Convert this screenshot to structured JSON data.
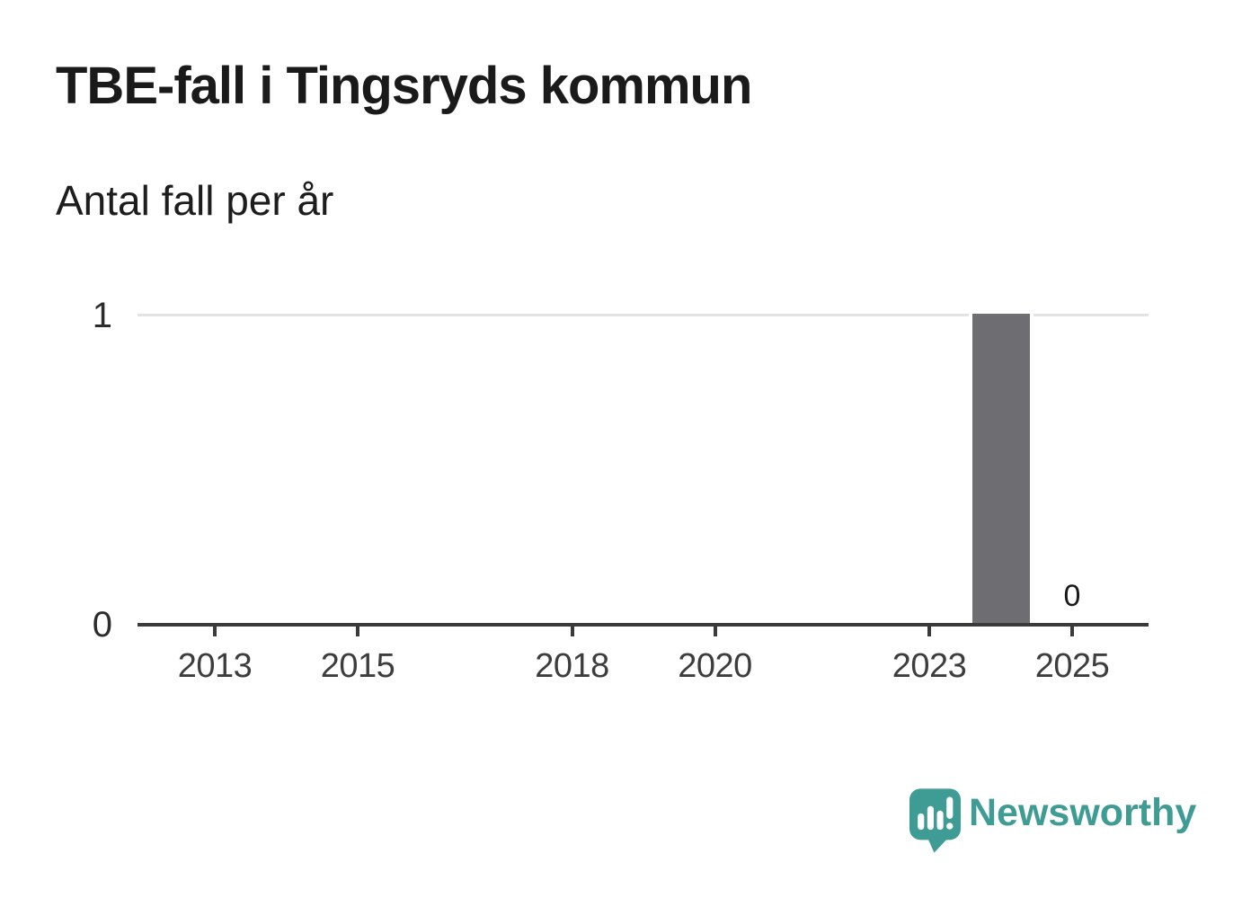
{
  "header": {
    "title": "TBE-fall i Tingsryds kommun",
    "subtitle": "Antal fall per år"
  },
  "chart_data": {
    "type": "bar",
    "title": "TBE-fall i Tingsryds kommun",
    "subtitle": "Antal fall per år",
    "xlabel": "",
    "ylabel": "",
    "categories": [
      2012,
      2013,
      2014,
      2015,
      2016,
      2017,
      2018,
      2019,
      2020,
      2021,
      2022,
      2023,
      2024,
      2025
    ],
    "values": [
      0,
      0,
      0,
      0,
      0,
      0,
      0,
      0,
      0,
      0,
      0,
      0,
      1,
      0
    ],
    "ylim": [
      0,
      1
    ],
    "y_ticks": [
      0,
      1
    ],
    "gridlines_y": [
      1
    ],
    "x_ticks": [
      {
        "year": 2013,
        "label": "2013"
      },
      {
        "year": 2015,
        "label": "2015"
      },
      {
        "year": 2018,
        "label": "2018"
      },
      {
        "year": 2020,
        "label": "2020"
      },
      {
        "year": 2023,
        "label": "2023"
      },
      {
        "year": 2025,
        "label": "2025"
      }
    ],
    "xlim_years": [
      2011.9,
      2026.1
    ],
    "value_labels": [
      {
        "year": 2025,
        "text": "0"
      }
    ],
    "bar_color": "#6d6d72",
    "axis_color": "#3a3a3a",
    "gridline_color": "#e3e3e3",
    "label_color": "#3d3d3d",
    "legend": "none",
    "grid": "single horizontal gridline at y=1"
  },
  "branding": {
    "logo_text": "Newsworthy",
    "logo_color": "#3f9c94",
    "logo_icon": "bar-chart-speech-bubble"
  }
}
